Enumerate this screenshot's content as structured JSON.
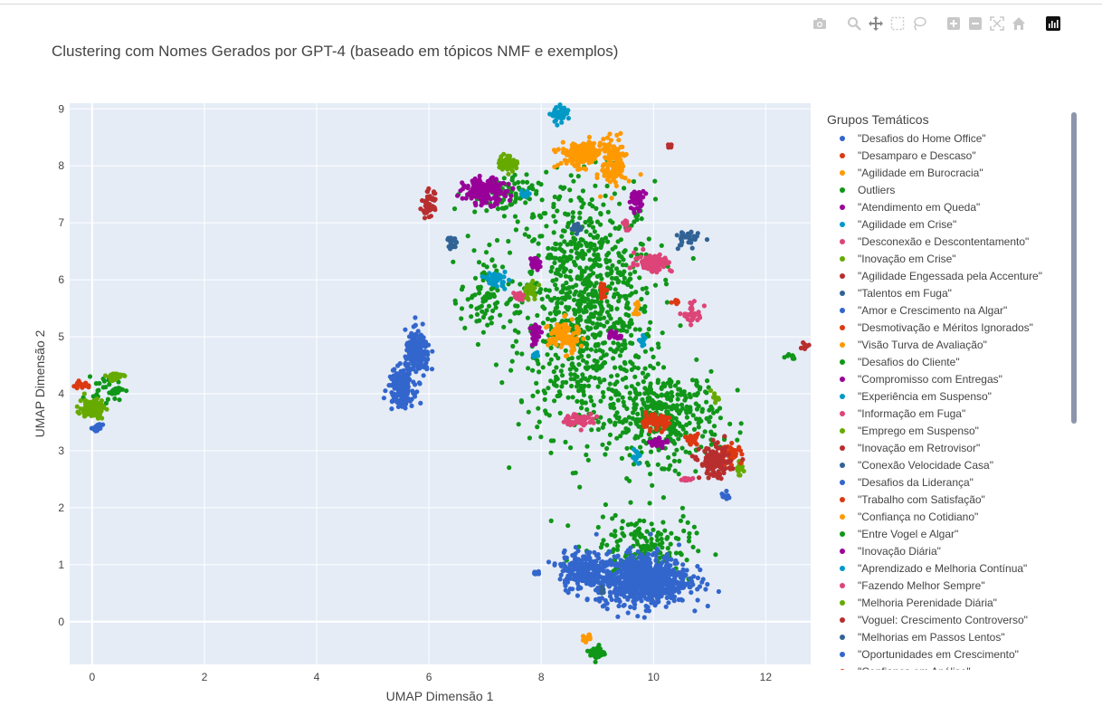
{
  "modebar": {
    "icons": [
      "camera-icon",
      "zoom-icon",
      "pan-icon",
      "box-select-icon",
      "lasso-icon",
      "zoom-in-icon",
      "zoom-out-icon",
      "autoscale-icon",
      "home-icon",
      "plotly-logo-icon"
    ]
  },
  "chart_data": {
    "type": "scatter",
    "title": "Clustering com Nomes Gerados por GPT-4 (baseado em tópicos NMF e exemplos)",
    "xlabel": "UMAP Dimensão 1",
    "ylabel": "UMAP Dimensão 2",
    "xlim": [
      -0.4,
      12.8
    ],
    "ylim": [
      -0.75,
      9.1
    ],
    "xticks": [
      0,
      2,
      4,
      6,
      8,
      10,
      12
    ],
    "yticks": [
      0,
      1,
      2,
      3,
      4,
      5,
      6,
      7,
      8,
      9
    ],
    "grid": true,
    "legend": {
      "title": "Grupos Temáticos",
      "placement": "right",
      "items": [
        {
          "name": "\"Desafios do Home Office\"",
          "color": "#3366cc"
        },
        {
          "name": "\"Desamparo e Descaso\"",
          "color": "#dc3912"
        },
        {
          "name": "\"Agilidade em Burocracia\"",
          "color": "#ff9900"
        },
        {
          "name": "Outliers",
          "color": "#109618"
        },
        {
          "name": "\"Atendimento em Queda\"",
          "color": "#990099"
        },
        {
          "name": "\"Agilidade em Crise\"",
          "color": "#0099c6"
        },
        {
          "name": "\"Desconexão e Descontentamento\"",
          "color": "#dd4477"
        },
        {
          "name": "\"Inovação em Crise\"",
          "color": "#66aa00"
        },
        {
          "name": "\"Agilidade Engessada pela Accenture\"",
          "color": "#b82e2e"
        },
        {
          "name": "\"Talentos em Fuga\"",
          "color": "#316395"
        },
        {
          "name": "\"Amor e Crescimento na Algar\"",
          "color": "#3366cc"
        },
        {
          "name": "\"Desmotivação e Méritos Ignorados\"",
          "color": "#dc3912"
        },
        {
          "name": "\"Visão Turva de Avaliação\"",
          "color": "#ff9900"
        },
        {
          "name": "\"Desafios do Cliente\"",
          "color": "#109618"
        },
        {
          "name": "\"Compromisso com Entregas\"",
          "color": "#990099"
        },
        {
          "name": "\"Experiência em Suspenso\"",
          "color": "#0099c6"
        },
        {
          "name": "\"Informação em Fuga\"",
          "color": "#dd4477"
        },
        {
          "name": "\"Emprego em Suspenso\"",
          "color": "#66aa00"
        },
        {
          "name": "\"Inovação em Retrovisor\"",
          "color": "#b82e2e"
        },
        {
          "name": "\"Conexão Velocidade Casa\"",
          "color": "#316395"
        },
        {
          "name": "\"Desafios da Liderança\"",
          "color": "#3366cc"
        },
        {
          "name": "\"Trabalho com Satisfação\"",
          "color": "#dc3912"
        },
        {
          "name": "\"Confiança no Cotidiano\"",
          "color": "#ff9900"
        },
        {
          "name": "\"Entre Vogel e Algar\"",
          "color": "#109618"
        },
        {
          "name": "\"Inovação Diária\"",
          "color": "#990099"
        },
        {
          "name": "\"Aprendizado e Melhoria Contínua\"",
          "color": "#0099c6"
        },
        {
          "name": "\"Fazendo Melhor Sempre\"",
          "color": "#dd4477"
        },
        {
          "name": "\"Melhoria Perenidade Diária\"",
          "color": "#66aa00"
        },
        {
          "name": "\"Voguel: Crescimento Controverso\"",
          "color": "#b82e2e"
        },
        {
          "name": "\"Melhorias em Passos Lentos\"",
          "color": "#316395"
        },
        {
          "name": "\"Oportunidades em Crescimento\"",
          "color": "#3366cc"
        },
        {
          "name": "\"Confiança em Análise\"",
          "color": "#dc3912"
        }
      ]
    },
    "clusters": [
      {
        "color": "#109618",
        "x": 8.8,
        "y": 5.5,
        "sx": 1.1,
        "sy": 2.0,
        "n": 900
      },
      {
        "color": "#109618",
        "x": 10.2,
        "y": 3.6,
        "sx": 0.9,
        "sy": 0.7,
        "n": 380
      },
      {
        "color": "#109618",
        "x": 9.8,
        "y": 1.3,
        "sx": 0.8,
        "sy": 0.55,
        "n": 170
      },
      {
        "color": "#109618",
        "x": 7.3,
        "y": 7.5,
        "sx": 0.6,
        "sy": 0.3,
        "n": 90
      },
      {
        "color": "#109618",
        "x": 7.0,
        "y": 5.7,
        "sx": 0.4,
        "sy": 0.7,
        "n": 80
      },
      {
        "color": "#109618",
        "x": 0.3,
        "y": 4.1,
        "sx": 0.25,
        "sy": 0.2,
        "n": 40
      },
      {
        "color": "#109618",
        "x": 9.0,
        "y": -0.55,
        "sx": 0.12,
        "sy": 0.12,
        "n": 40
      },
      {
        "color": "#109618",
        "x": 12.4,
        "y": 4.65,
        "sx": 0.15,
        "sy": 0.06,
        "n": 8
      },
      {
        "color": "#3366cc",
        "x": 9.8,
        "y": 0.75,
        "sx": 0.75,
        "sy": 0.4,
        "n": 800
      },
      {
        "color": "#3366cc",
        "x": 8.7,
        "y": 0.9,
        "sx": 0.35,
        "sy": 0.3,
        "n": 200
      },
      {
        "color": "#3366cc",
        "x": 5.8,
        "y": 4.7,
        "sx": 0.2,
        "sy": 0.35,
        "n": 180
      },
      {
        "color": "#3366cc",
        "x": 5.5,
        "y": 4.1,
        "sx": 0.2,
        "sy": 0.28,
        "n": 170
      },
      {
        "color": "#3366cc",
        "x": 0.1,
        "y": 3.4,
        "sx": 0.07,
        "sy": 0.05,
        "n": 20
      },
      {
        "color": "#3366cc",
        "x": 7.9,
        "y": 0.85,
        "sx": 0.05,
        "sy": 0.03,
        "n": 8
      },
      {
        "color": "#3366cc",
        "x": 11.3,
        "y": 2.2,
        "sx": 0.1,
        "sy": 0.08,
        "n": 10
      },
      {
        "color": "#ff9900",
        "x": 8.7,
        "y": 8.2,
        "sx": 0.35,
        "sy": 0.2,
        "n": 160
      },
      {
        "color": "#ff9900",
        "x": 9.3,
        "y": 8.05,
        "sx": 0.2,
        "sy": 0.4,
        "n": 130
      },
      {
        "color": "#ff9900",
        "x": 8.4,
        "y": 5.0,
        "sx": 0.25,
        "sy": 0.25,
        "n": 100
      },
      {
        "color": "#ff9900",
        "x": 8.8,
        "y": -0.3,
        "sx": 0.07,
        "sy": 0.07,
        "n": 15
      },
      {
        "color": "#ff9900",
        "x": 9.7,
        "y": 5.5,
        "sx": 0.05,
        "sy": 0.1,
        "n": 10
      },
      {
        "color": "#990099",
        "x": 7.0,
        "y": 7.55,
        "sx": 0.35,
        "sy": 0.2,
        "n": 180
      },
      {
        "color": "#990099",
        "x": 7.9,
        "y": 5.05,
        "sx": 0.08,
        "sy": 0.15,
        "n": 30
      },
      {
        "color": "#990099",
        "x": 7.9,
        "y": 6.3,
        "sx": 0.1,
        "sy": 0.1,
        "n": 25
      },
      {
        "color": "#990099",
        "x": 9.7,
        "y": 7.4,
        "sx": 0.12,
        "sy": 0.15,
        "n": 40
      },
      {
        "color": "#990099",
        "x": 10.1,
        "y": 3.15,
        "sx": 0.15,
        "sy": 0.07,
        "n": 30
      },
      {
        "color": "#990099",
        "x": 9.3,
        "y": 5.05,
        "sx": 0.1,
        "sy": 0.08,
        "n": 20
      },
      {
        "color": "#66aa00",
        "x": 7.4,
        "y": 8.05,
        "sx": 0.15,
        "sy": 0.12,
        "n": 80
      },
      {
        "color": "#66aa00",
        "x": 0.0,
        "y": 3.75,
        "sx": 0.2,
        "sy": 0.15,
        "n": 110
      },
      {
        "color": "#66aa00",
        "x": 0.4,
        "y": 4.3,
        "sx": 0.15,
        "sy": 0.06,
        "n": 40
      },
      {
        "color": "#66aa00",
        "x": 7.8,
        "y": 5.8,
        "sx": 0.12,
        "sy": 0.15,
        "n": 30
      },
      {
        "color": "#66aa00",
        "x": 11.5,
        "y": 2.7,
        "sx": 0.1,
        "sy": 0.1,
        "n": 20
      },
      {
        "color": "#66aa00",
        "x": 11.1,
        "y": 3.9,
        "sx": 0.1,
        "sy": 0.1,
        "n": 10
      },
      {
        "color": "#dc3912",
        "x": -0.2,
        "y": 4.15,
        "sx": 0.12,
        "sy": 0.05,
        "n": 25
      },
      {
        "color": "#dc3912",
        "x": 10.0,
        "y": 3.5,
        "sx": 0.25,
        "sy": 0.12,
        "n": 60
      },
      {
        "color": "#dc3912",
        "x": 11.4,
        "y": 2.95,
        "sx": 0.15,
        "sy": 0.15,
        "n": 45
      },
      {
        "color": "#dc3912",
        "x": 10.7,
        "y": 3.2,
        "sx": 0.1,
        "sy": 0.1,
        "n": 25
      },
      {
        "color": "#dc3912",
        "x": 9.1,
        "y": 5.8,
        "sx": 0.06,
        "sy": 0.12,
        "n": 20
      },
      {
        "color": "#dc3912",
        "x": 10.4,
        "y": 5.65,
        "sx": 0.06,
        "sy": 0.05,
        "n": 10
      },
      {
        "color": "#dd4477",
        "x": 10.0,
        "y": 6.3,
        "sx": 0.3,
        "sy": 0.15,
        "n": 100
      },
      {
        "color": "#dd4477",
        "x": 8.7,
        "y": 3.55,
        "sx": 0.25,
        "sy": 0.1,
        "n": 60
      },
      {
        "color": "#dd4477",
        "x": 10.7,
        "y": 5.4,
        "sx": 0.15,
        "sy": 0.15,
        "n": 35
      },
      {
        "color": "#dd4477",
        "x": 7.6,
        "y": 5.7,
        "sx": 0.08,
        "sy": 0.08,
        "n": 15
      },
      {
        "color": "#dd4477",
        "x": 9.5,
        "y": 6.95,
        "sx": 0.06,
        "sy": 0.1,
        "n": 15
      },
      {
        "color": "#dd4477",
        "x": 10.6,
        "y": 2.5,
        "sx": 0.12,
        "sy": 0.05,
        "n": 12
      },
      {
        "color": "#0099c6",
        "x": 8.35,
        "y": 8.9,
        "sx": 0.15,
        "sy": 0.12,
        "n": 45
      },
      {
        "color": "#0099c6",
        "x": 7.2,
        "y": 6.0,
        "sx": 0.15,
        "sy": 0.12,
        "n": 40
      },
      {
        "color": "#0099c6",
        "x": 9.7,
        "y": 2.9,
        "sx": 0.08,
        "sy": 0.12,
        "n": 15
      },
      {
        "color": "#0099c6",
        "x": 7.9,
        "y": 4.7,
        "sx": 0.05,
        "sy": 0.05,
        "n": 10
      },
      {
        "color": "#0099c6",
        "x": 9.8,
        "y": 4.95,
        "sx": 0.06,
        "sy": 0.08,
        "n": 10
      },
      {
        "color": "#0099c6",
        "x": 7.7,
        "y": 7.5,
        "sx": 0.08,
        "sy": 0.06,
        "n": 12
      },
      {
        "color": "#b82e2e",
        "x": 6.0,
        "y": 7.3,
        "sx": 0.12,
        "sy": 0.22,
        "n": 45
      },
      {
        "color": "#b82e2e",
        "x": 11.1,
        "y": 2.8,
        "sx": 0.25,
        "sy": 0.25,
        "n": 130
      },
      {
        "color": "#b82e2e",
        "x": 10.3,
        "y": 8.35,
        "sx": 0.05,
        "sy": 0.03,
        "n": 8
      },
      {
        "color": "#b82e2e",
        "x": 12.7,
        "y": 4.85,
        "sx": 0.06,
        "sy": 0.05,
        "n": 8
      },
      {
        "color": "#316395",
        "x": 6.4,
        "y": 6.65,
        "sx": 0.12,
        "sy": 0.18,
        "n": 20
      },
      {
        "color": "#316395",
        "x": 10.6,
        "y": 6.7,
        "sx": 0.18,
        "sy": 0.15,
        "n": 30
      },
      {
        "color": "#316395",
        "x": 8.6,
        "y": 6.9,
        "sx": 0.1,
        "sy": 0.1,
        "n": 15
      },
      {
        "color": "#316395",
        "x": 9.1,
        "y": 0.55,
        "sx": 0.05,
        "sy": 0.05,
        "n": 8
      }
    ]
  }
}
